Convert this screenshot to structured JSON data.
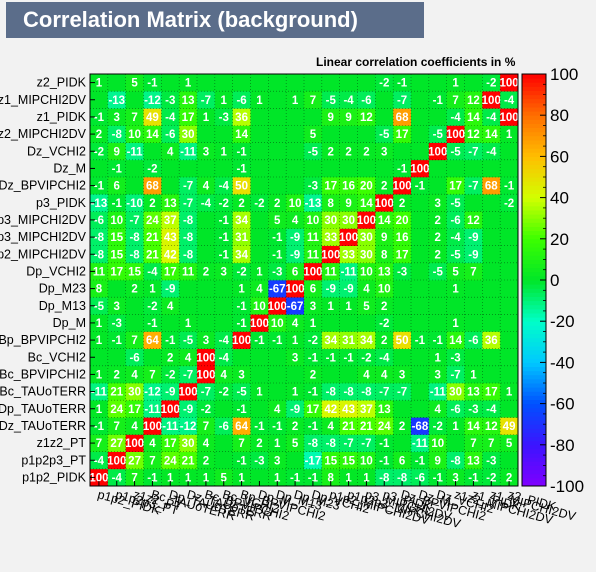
{
  "header": {
    "title": "Correlation Matrix (background)",
    "subtitle": "Linear correlation coefficients in %"
  },
  "chart_data": {
    "type": "heatmap",
    "title": "Correlation Matrix (background)",
    "subtitle": "Linear correlation coefficients in %",
    "x_labels": [
      "p1p2_PIDK",
      "p1p2p3_PT",
      "z1z2_PT",
      "Bc_TAUoTERR",
      "Dp_TAUoTERR",
      "Dz_TAUoTERR",
      "Bc_BPVIPCHI2",
      "Bc_VCHI2",
      "Bp_BPVIPCHI2",
      "Dp_M",
      "Dp_M13",
      "Dp_M23",
      "Dp_VCHI2",
      "p1p2_MIPCHI2DV",
      "p1p2p3_MIPCHI2DV",
      "p3_MIPCHI2DV",
      "p3_PIDK",
      "Dz_BPVIPCHI2",
      "Dz_M",
      "Dz_VCHI2",
      "z1z2_MIPCHI2DV",
      "z1_PIDK",
      "z1_MIPCHI2DV",
      "z2_PIDK"
    ],
    "y_labels": [
      "p1p2_PIDK",
      "p1p2p3_PT",
      "z1z2_PT",
      "Dz_TAUoTERR",
      "Dp_TAUoTERR",
      "Bc_TAUoTERR",
      "Bc_BPVIPCHI2",
      "Bc_VCHI2",
      "Bp_BPVIPCHI2",
      "Dp_M",
      "Dp_M13",
      "Dp_M23",
      "Dp_VCHI2",
      "p1p2_MIPCHI2DV",
      "p1p2p3_MIPCHI2DV",
      "p3_MIPCHI2DV",
      "p3_PIDK",
      "Dz_BPVIPCHI2",
      "Dz_M",
      "Dz_VCHI2",
      "z1z2_MIPCHI2DV",
      "z1_PIDK",
      "z1_MIPCHI2DV",
      "z2_PIDK"
    ],
    "values": [
      [
        100,
        -4,
        7,
        -1,
        1,
        1,
        1,
        5,
        1,
        0,
        1,
        -1,
        -1,
        8,
        1,
        1,
        -8,
        -8,
        -6,
        -1,
        3,
        -1,
        -2,
        2
      ],
      [
        -4,
        100,
        27,
        7,
        24,
        21,
        2,
        0,
        -1,
        -3,
        3,
        0,
        -17,
        15,
        15,
        10,
        -1,
        6,
        -1,
        9,
        -8,
        13,
        -3,
        0
      ],
      [
        7,
        27,
        100,
        4,
        17,
        30,
        4,
        0,
        7,
        2,
        1,
        5,
        -8,
        -8,
        -7,
        -7,
        -1,
        0,
        -11,
        10,
        0,
        7,
        7,
        5
      ],
      [
        -1,
        7,
        4,
        100,
        -11,
        -12,
        7,
        -6,
        64,
        -1,
        -1,
        2,
        -1,
        4,
        21,
        21,
        24,
        2,
        -68,
        -2,
        1,
        14,
        12,
        49
      ],
      [
        1,
        24,
        17,
        -11,
        100,
        -9,
        -2,
        0,
        -1,
        0,
        4,
        -9,
        17,
        42,
        43,
        37,
        13,
        0,
        0,
        4,
        -6,
        -3,
        -4,
        0
      ],
      [
        -11,
        21,
        30,
        -12,
        -9,
        100,
        -7,
        -2,
        -5,
        1,
        0,
        1,
        -1,
        -8,
        -8,
        -8,
        -7,
        -7,
        0,
        -11,
        30,
        13,
        17,
        1
      ],
      [
        1,
        2,
        4,
        7,
        -2,
        -7,
        100,
        4,
        3,
        0,
        0,
        0,
        2,
        0,
        0,
        4,
        4,
        3,
        0,
        3,
        -7,
        1,
        0,
        0
      ],
      [
        0,
        0,
        -6,
        0,
        2,
        4,
        100,
        -4,
        0,
        0,
        0,
        3,
        -1,
        -1,
        -1,
        -2,
        -4,
        0,
        0,
        1,
        -3,
        0,
        0,
        0
      ],
      [
        1,
        -1,
        7,
        64,
        -1,
        -5,
        3,
        -4,
        100,
        -1,
        -1,
        1,
        -2,
        34,
        31,
        34,
        2,
        50,
        -1,
        -1,
        14,
        -6,
        36,
        0
      ],
      [
        1,
        -3,
        0,
        -1,
        0,
        1,
        0,
        0,
        -1,
        100,
        10,
        4,
        1,
        0,
        0,
        0,
        -2,
        0,
        0,
        0,
        1,
        0,
        0,
        0
      ],
      [
        -5,
        3,
        0,
        -2,
        4,
        0,
        0,
        0,
        -1,
        10,
        100,
        -67,
        3,
        1,
        1,
        5,
        2,
        0,
        0,
        0,
        0,
        0,
        0,
        0
      ],
      [
        8,
        0,
        2,
        1,
        -9,
        0,
        0,
        0,
        1,
        4,
        -67,
        100,
        6,
        -9,
        -9,
        4,
        10,
        0,
        0,
        0,
        1,
        0,
        0,
        0
      ],
      [
        11,
        17,
        15,
        -4,
        17,
        11,
        2,
        3,
        -2,
        1,
        -3,
        6,
        100,
        11,
        -11,
        10,
        13,
        -3,
        0,
        -5,
        5,
        7,
        0,
        0
      ],
      [
        -8,
        15,
        -8,
        21,
        42,
        -8,
        0,
        -1,
        34,
        0,
        -1,
        -9,
        11,
        100,
        33,
        30,
        8,
        17,
        0,
        2,
        -5,
        -9,
        0,
        0
      ],
      [
        -8,
        15,
        -8,
        21,
        43,
        -8,
        0,
        -1,
        31,
        0,
        -1,
        -9,
        11,
        33,
        100,
        30,
        9,
        16,
        0,
        2,
        -4,
        -9,
        0,
        0
      ],
      [
        -6,
        10,
        -7,
        24,
        37,
        -8,
        0,
        -1,
        34,
        0,
        5,
        4,
        10,
        30,
        30,
        100,
        14,
        20,
        0,
        2,
        -6,
        12,
        0,
        0
      ],
      [
        -13,
        -1,
        -10,
        2,
        13,
        -7,
        -4,
        -2,
        2,
        -2,
        2,
        10,
        -13,
        8,
        9,
        14,
        100,
        2,
        0,
        3,
        -5,
        0,
        0,
        -2
      ],
      [
        -1,
        6,
        0,
        68,
        0,
        -7,
        4,
        -4,
        50,
        0,
        0,
        0,
        -3,
        17,
        16,
        20,
        2,
        100,
        -1,
        0,
        17,
        -7,
        68,
        -1
      ],
      [
        0,
        -1,
        0,
        -2,
        0,
        0,
        0,
        0,
        -1,
        0,
        0,
        0,
        0,
        0,
        0,
        0,
        0,
        -1,
        100,
        0,
        0,
        0,
        0,
        0
      ],
      [
        -2,
        9,
        -11,
        0,
        4,
        -11,
        3,
        1,
        -1,
        0,
        0,
        0,
        -5,
        2,
        2,
        2,
        3,
        0,
        0,
        100,
        -5,
        -7,
        -4,
        0
      ],
      [
        2,
        -8,
        10,
        14,
        -6,
        30,
        0,
        0,
        14,
        0,
        0,
        0,
        5,
        0,
        0,
        0,
        -5,
        17,
        0,
        -5,
        100,
        12,
        14,
        1
      ],
      [
        -1,
        3,
        7,
        49,
        -4,
        17,
        1,
        -3,
        36,
        0,
        0,
        0,
        0,
        9,
        9,
        12,
        0,
        68,
        0,
        0,
        -4,
        14,
        -4,
        100
      ],
      [
        0,
        -13,
        0,
        -12,
        -3,
        13,
        -7,
        1,
        -6,
        1,
        0,
        1,
        7,
        -5,
        -4,
        -6,
        0,
        -7,
        0,
        -1,
        7,
        12,
        100,
        -4
      ],
      [
        1,
        0,
        5,
        -1,
        0,
        1,
        0,
        0,
        0,
        0,
        0,
        0,
        0,
        0,
        0,
        0,
        -2,
        -1,
        0,
        0,
        1,
        0,
        -2,
        100
      ]
    ],
    "zlim": [
      -100,
      100
    ],
    "colorbar_ticks": [
      -100,
      -80,
      -60,
      -40,
      -20,
      0,
      20,
      40,
      60,
      80,
      100
    ]
  }
}
